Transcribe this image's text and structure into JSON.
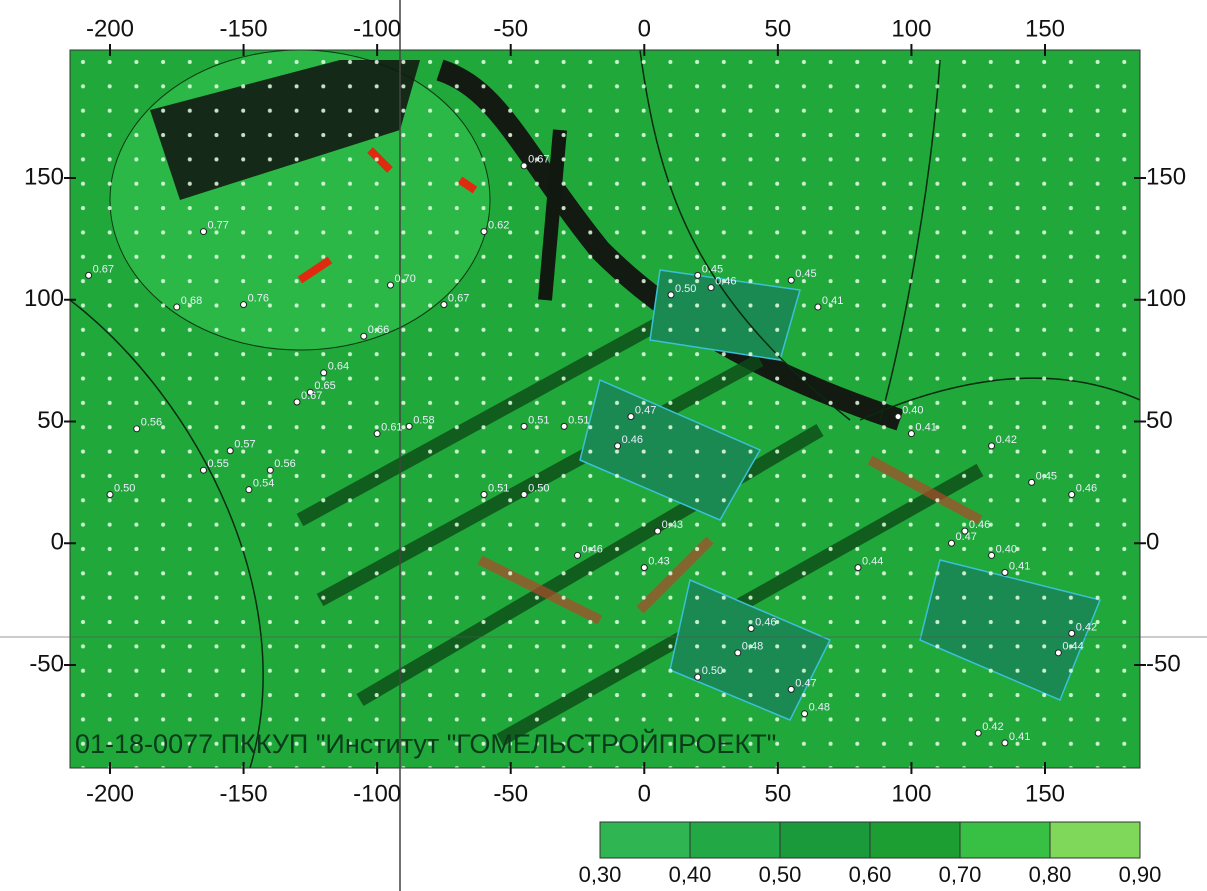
{
  "axes": {
    "x_ticks": [
      -200,
      -150,
      -100,
      -50,
      0,
      50,
      100,
      150
    ],
    "y_ticks": [
      150,
      100,
      50,
      0,
      -50
    ]
  },
  "caption": "01-18-0077 ПККУП \"Институт \"ГОМЕЛЬСТРОЙПРОЕКТ\"",
  "legend": {
    "labels": [
      "0,30",
      "0,40",
      "0,50",
      "0,60",
      "0,70",
      "0,80",
      "0,90"
    ]
  },
  "point_labels": [
    {
      "x": -165,
      "y": 128,
      "text": "0.77"
    },
    {
      "x": -208,
      "y": 110,
      "text": "0.67"
    },
    {
      "x": -175,
      "y": 97,
      "text": "0.68"
    },
    {
      "x": -150,
      "y": 98,
      "text": "0.76"
    },
    {
      "x": -95,
      "y": 106,
      "text": "0.70"
    },
    {
      "x": -75,
      "y": 98,
      "text": "0.67"
    },
    {
      "x": -60,
      "y": 128,
      "text": "0.62"
    },
    {
      "x": -45,
      "y": 155,
      "text": "0.67"
    },
    {
      "x": -105,
      "y": 85,
      "text": "0.66"
    },
    {
      "x": -120,
      "y": 70,
      "text": "0.64"
    },
    {
      "x": -125,
      "y": 62,
      "text": "0.65"
    },
    {
      "x": -130,
      "y": 58,
      "text": "0.67"
    },
    {
      "x": -100,
      "y": 45,
      "text": "0.61"
    },
    {
      "x": -88,
      "y": 48,
      "text": "0.58"
    },
    {
      "x": -190,
      "y": 47,
      "text": "0.56"
    },
    {
      "x": -155,
      "y": 38,
      "text": "0.57"
    },
    {
      "x": -165,
      "y": 30,
      "text": "0.55"
    },
    {
      "x": -140,
      "y": 30,
      "text": "0.56"
    },
    {
      "x": -148,
      "y": 22,
      "text": "0.54"
    },
    {
      "x": -200,
      "y": 20,
      "text": "0.50"
    },
    {
      "x": -60,
      "y": 20,
      "text": "0.51"
    },
    {
      "x": -45,
      "y": 20,
      "text": "0.50"
    },
    {
      "x": -45,
      "y": 48,
      "text": "0.51"
    },
    {
      "x": -30,
      "y": 48,
      "text": "0.51"
    },
    {
      "x": -5,
      "y": 52,
      "text": "0.47"
    },
    {
      "x": -10,
      "y": 40,
      "text": "0.46"
    },
    {
      "x": 20,
      "y": 110,
      "text": "0.45"
    },
    {
      "x": 10,
      "y": 102,
      "text": "0.50"
    },
    {
      "x": 25,
      "y": 105,
      "text": "0.46"
    },
    {
      "x": 55,
      "y": 108,
      "text": "0.45"
    },
    {
      "x": 65,
      "y": 97,
      "text": "0.41"
    },
    {
      "x": 95,
      "y": 52,
      "text": "0.40"
    },
    {
      "x": 100,
      "y": 45,
      "text": "0.41"
    },
    {
      "x": 130,
      "y": 40,
      "text": "0.42"
    },
    {
      "x": 145,
      "y": 25,
      "text": "0.45"
    },
    {
      "x": 160,
      "y": 20,
      "text": "0.46"
    },
    {
      "x": 120,
      "y": 5,
      "text": "0.46"
    },
    {
      "x": 115,
      "y": 0,
      "text": "0.47"
    },
    {
      "x": 130,
      "y": -5,
      "text": "0.40"
    },
    {
      "x": 135,
      "y": -12,
      "text": "0.41"
    },
    {
      "x": 80,
      "y": -10,
      "text": "0.44"
    },
    {
      "x": 5,
      "y": 5,
      "text": "0.43"
    },
    {
      "x": 40,
      "y": -35,
      "text": "0.46"
    },
    {
      "x": 35,
      "y": -45,
      "text": "0.48"
    },
    {
      "x": 20,
      "y": -55,
      "text": "0.50"
    },
    {
      "x": 55,
      "y": -60,
      "text": "0.47"
    },
    {
      "x": 60,
      "y": -70,
      "text": "0.48"
    },
    {
      "x": 155,
      "y": -45,
      "text": "0.44"
    },
    {
      "x": 160,
      "y": -37,
      "text": "0.42"
    },
    {
      "x": 125,
      "y": -78,
      "text": "0.42"
    },
    {
      "x": 135,
      "y": -82,
      "text": "0.41"
    },
    {
      "x": -25,
      "y": -5,
      "text": "0.46"
    },
    {
      "x": 0,
      "y": -10,
      "text": "0.43"
    }
  ]
}
